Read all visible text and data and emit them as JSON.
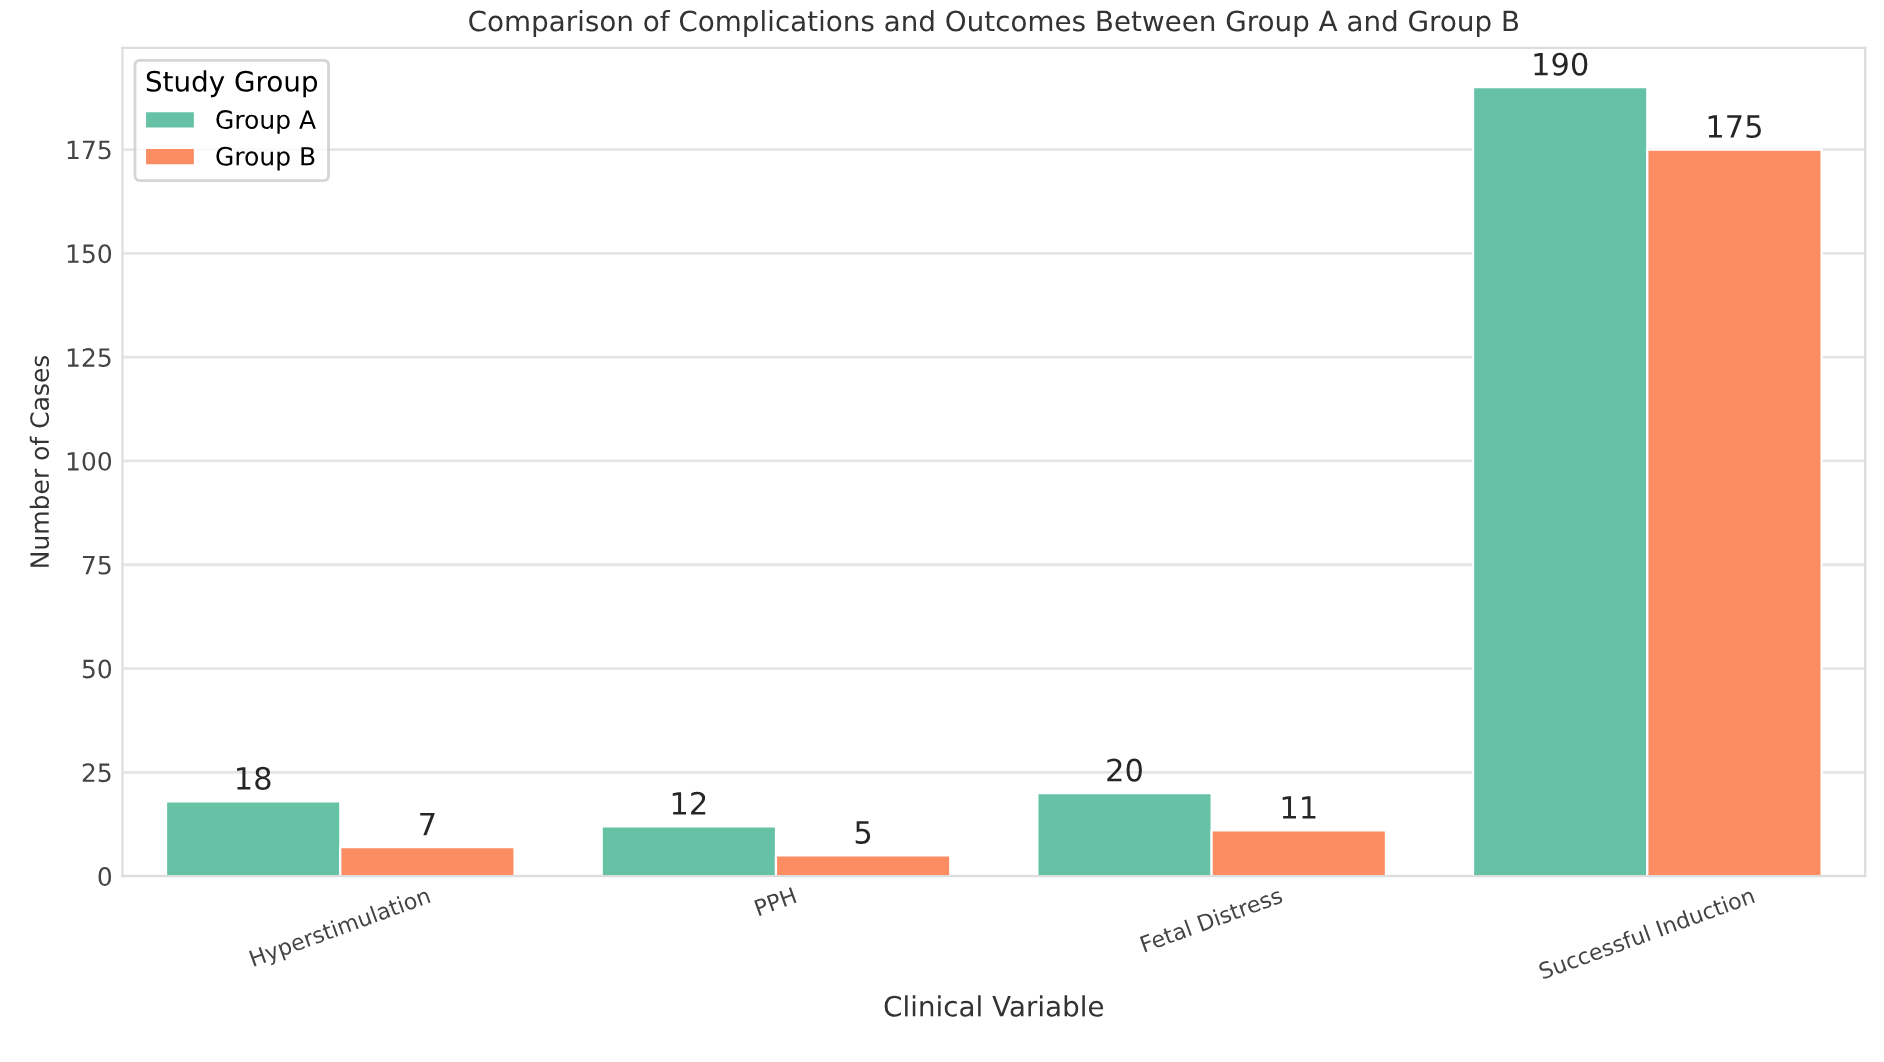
{
  "chart_data": {
    "type": "bar",
    "title": "Comparison of Complications and Outcomes Between Group A and Group B",
    "xlabel": "Clinical Variable",
    "ylabel": "Number of Cases",
    "legend_title": "Study Group",
    "categories": [
      "Hyperstimulation",
      "PPH",
      "Fetal Distress",
      "Successful Induction"
    ],
    "series": [
      {
        "name": "Group A",
        "color": "#66c2a5",
        "values": [
          18,
          12,
          20,
          190
        ]
      },
      {
        "name": "Group B",
        "color": "#fc8d62",
        "values": [
          7,
          5,
          11,
          175
        ]
      }
    ],
    "ylim": [
      0,
      199.5
    ],
    "yticks": [
      0,
      25,
      50,
      75,
      100,
      125,
      150,
      175
    ],
    "grid": "y",
    "legend": "top left",
    "data_labels": true
  }
}
